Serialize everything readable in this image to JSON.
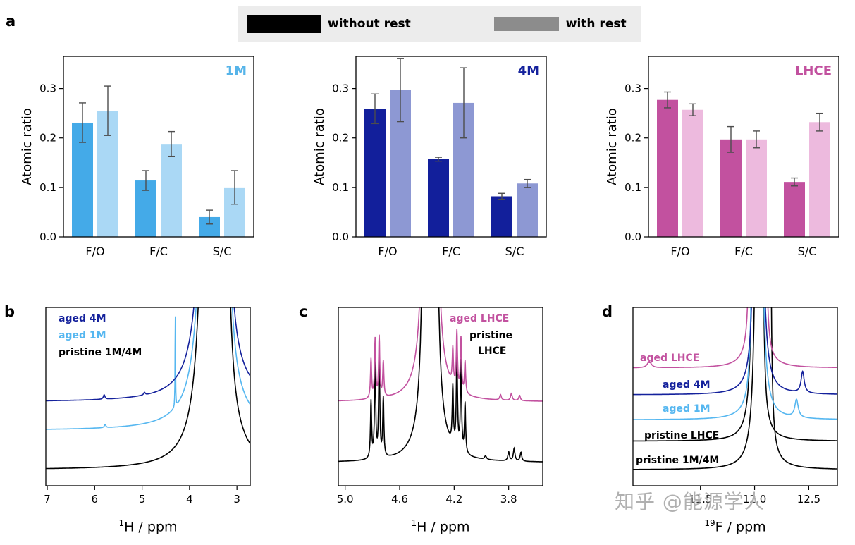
{
  "panels": {
    "a": "a",
    "b": "b",
    "c": "c",
    "d": "d"
  },
  "legend": {
    "items": [
      {
        "label": "without rest",
        "color": "#000000"
      },
      {
        "label": "with rest",
        "color": "#8c8c8c"
      }
    ]
  },
  "watermark": "知乎 @能源学人",
  "chart_data": [
    {
      "type": "bar",
      "panel": "a1",
      "title": "1M",
      "title_color": "#56b4e9",
      "ylabel": "Atomic ratio",
      "ylim": [
        0,
        0.365
      ],
      "yticks": [
        0,
        0.1,
        0.2,
        0.3
      ],
      "categories": [
        "F/O",
        "F/C",
        "S/C"
      ],
      "series": [
        {
          "name": "without rest",
          "color": "#44aae8",
          "values": [
            0.231,
            0.114,
            0.04
          ],
          "errors": [
            0.04,
            0.02,
            0.014
          ]
        },
        {
          "name": "with rest",
          "color": "#aad8f5",
          "values": [
            0.255,
            0.188,
            0.1
          ],
          "errors": [
            0.05,
            0.025,
            0.034
          ]
        }
      ]
    },
    {
      "type": "bar",
      "panel": "a2",
      "title": "4M",
      "title_color": "#14219c",
      "ylabel": "Atomic ratio",
      "ylim": [
        0,
        0.365
      ],
      "yticks": [
        0,
        0.1,
        0.2,
        0.3
      ],
      "categories": [
        "F/O",
        "F/C",
        "S/C"
      ],
      "series": [
        {
          "name": "without rest",
          "color": "#121f9b",
          "values": [
            0.259,
            0.157,
            0.082
          ],
          "errors": [
            0.03,
            0.004,
            0.006
          ]
        },
        {
          "name": "with rest",
          "color": "#8d98d3",
          "values": [
            0.297,
            0.271,
            0.108
          ],
          "errors": [
            0.064,
            0.071,
            0.008
          ]
        }
      ]
    },
    {
      "type": "bar",
      "panel": "a3",
      "title": "LHCE",
      "title_color": "#c2519f",
      "ylabel": "Atomic ratio",
      "ylim": [
        0,
        0.365
      ],
      "yticks": [
        0,
        0.1,
        0.2,
        0.3
      ],
      "categories": [
        "F/O",
        "F/C",
        "S/C"
      ],
      "series": [
        {
          "name": "without rest",
          "color": "#c2519f",
          "values": [
            0.277,
            0.197,
            0.111
          ],
          "errors": [
            0.016,
            0.026,
            0.008
          ]
        },
        {
          "name": "with rest",
          "color": "#edbade",
          "values": [
            0.257,
            0.197,
            0.232
          ],
          "errors": [
            0.012,
            0.017,
            0.018
          ]
        }
      ]
    },
    {
      "type": "line",
      "panel": "b",
      "xlabel_sup": "1",
      "xlabel_main": "H / ppm",
      "x_left": 7.03,
      "x_right": 2.72,
      "xticks": [
        {
          "v": 7,
          "label": "7"
        },
        {
          "v": 6,
          "label": "6"
        },
        {
          "v": 5,
          "label": "5"
        },
        {
          "v": 4,
          "label": "4"
        },
        {
          "v": 3,
          "label": "3"
        }
      ],
      "traces": [
        {
          "name": "pristine 1M/4M",
          "color": "#000000",
          "offset": 0.09,
          "peaks": [
            [
              3.62,
              2.2,
              0.1
            ],
            [
              3.5,
              5,
              0.09
            ],
            [
              3.37,
              5,
              0.06
            ],
            [
              3.23,
              1.4,
              0.045
            ]
          ]
        },
        {
          "name": "aged 1M",
          "color": "#56b7f0",
          "offset": 0.31,
          "peaks": [
            [
              3.62,
              2.2,
              0.1
            ],
            [
              3.5,
              5,
              0.09
            ],
            [
              3.37,
              5,
              0.06
            ],
            [
              3.23,
              1.4,
              0.045
            ],
            [
              4.3,
              0.55,
              0.005
            ],
            [
              5.78,
              0.018,
              0.02
            ]
          ]
        },
        {
          "name": "aged 4M",
          "color": "#14219c",
          "offset": 0.47,
          "peaks": [
            [
              3.62,
              2.2,
              0.1
            ],
            [
              3.5,
              5,
              0.09
            ],
            [
              3.37,
              5,
              0.06
            ],
            [
              3.23,
              1.4,
              0.045
            ],
            [
              5.8,
              0.025,
              0.02
            ],
            [
              4.95,
              0.015,
              0.02
            ]
          ]
        }
      ],
      "labels": [
        {
          "text": "aged 4M",
          "color": "#14219c"
        },
        {
          "text": "aged 1M",
          "color": "#56b7f0"
        },
        {
          "text": "pristine 1M/4M",
          "color": "#000000"
        }
      ]
    },
    {
      "type": "line",
      "panel": "c",
      "xlabel_sup": "1",
      "xlabel_main": "H / ppm",
      "x_left": 5.05,
      "x_right": 3.55,
      "xticks": [
        {
          "v": 5.0,
          "label": "5.0"
        },
        {
          "v": 4.6,
          "label": "4.6"
        },
        {
          "v": 4.2,
          "label": "4.2"
        },
        {
          "v": 3.8,
          "label": "3.8"
        }
      ],
      "traces": [
        {
          "name": "pristine LHCE",
          "color": "#000000",
          "offset": 0.13,
          "peaks": [
            [
              4.81,
              0.32,
              0.005
            ],
            [
              4.78,
              0.55,
              0.005
            ],
            [
              4.75,
              0.58,
              0.005
            ],
            [
              4.72,
              0.33,
              0.005
            ],
            [
              4.42,
              1.5,
              0.01
            ],
            [
              4.38,
              6,
              0.02
            ],
            [
              4.34,
              2.5,
              0.012
            ],
            [
              4.21,
              0.32,
              0.005
            ],
            [
              4.18,
              0.55,
              0.005
            ],
            [
              4.15,
              0.5,
              0.005
            ],
            [
              4.12,
              0.28,
              0.005
            ],
            [
              3.97,
              0.02,
              0.008
            ],
            [
              3.8,
              0.05,
              0.007
            ],
            [
              3.76,
              0.07,
              0.007
            ],
            [
              3.71,
              0.05,
              0.007
            ]
          ]
        },
        {
          "name": "aged LHCE",
          "color": "#c2519f",
          "offset": 0.47,
          "peaks": [
            [
              4.81,
              0.22,
              0.005
            ],
            [
              4.78,
              0.33,
              0.005
            ],
            [
              4.75,
              0.34,
              0.005
            ],
            [
              4.72,
              0.2,
              0.005
            ],
            [
              4.42,
              1.5,
              0.01
            ],
            [
              4.38,
              6,
              0.02
            ],
            [
              4.34,
              2.5,
              0.012
            ],
            [
              4.21,
              0.2,
              0.005
            ],
            [
              4.18,
              0.32,
              0.005
            ],
            [
              4.15,
              0.3,
              0.005
            ],
            [
              4.12,
              0.18,
              0.005
            ],
            [
              3.86,
              0.03,
              0.007
            ],
            [
              3.78,
              0.04,
              0.007
            ],
            [
              3.72,
              0.03,
              0.007
            ]
          ]
        }
      ],
      "labels": [
        {
          "text": "aged LHCE",
          "color": "#c2519f"
        },
        {
          "text": "pristine",
          "color": "#000000"
        },
        {
          "text": "LHCE",
          "color": "#000000"
        }
      ]
    },
    {
      "type": "line",
      "panel": "d",
      "xlabel_sup": "19",
      "xlabel_main": "F / ppm",
      "x_left": 0,
      "x_right": 1,
      "xticks": [
        {
          "v": 0.33,
          "label": "11.5"
        },
        {
          "v": 0.595,
          "label": "12.0"
        },
        {
          "v": 0.86,
          "label": "12.5"
        }
      ],
      "traces": [
        {
          "name": "pristine 1M/4M",
          "color": "#000000",
          "offset": 0.09,
          "peaks": [
            [
              0.615,
              5,
              0.01
            ],
            [
              0.648,
              2.5,
              0.007
            ],
            [
              0.672,
              1.2,
              0.006
            ]
          ]
        },
        {
          "name": "pristine LHCE",
          "color": "#000000",
          "offset": 0.25,
          "peaks": [
            [
              0.6,
              5,
              0.009
            ],
            [
              0.632,
              1.6,
              0.006
            ]
          ]
        },
        {
          "name": "aged 1M",
          "color": "#56b7f0",
          "offset": 0.37,
          "peaks": [
            [
              0.615,
              5,
              0.01
            ],
            [
              0.585,
              1.0,
              0.006
            ],
            [
              0.8,
              0.1,
              0.01
            ]
          ]
        },
        {
          "name": "aged 4M",
          "color": "#14219c",
          "offset": 0.51,
          "peaks": [
            [
              0.617,
              5,
              0.01
            ],
            [
              0.595,
              1.2,
              0.006
            ],
            [
              0.83,
              0.12,
              0.009
            ]
          ]
        },
        {
          "name": "aged LHCE",
          "color": "#c2519f",
          "offset": 0.66,
          "peaks": [
            [
              0.603,
              4,
              0.01
            ],
            [
              0.648,
              0.9,
              0.007
            ],
            [
              0.08,
              0.035,
              0.012
            ],
            [
              0.57,
              0.5,
              0.006
            ]
          ]
        }
      ],
      "labels": [
        {
          "text": "aged LHCE",
          "color": "#c2519f"
        },
        {
          "text": "aged 4M",
          "color": "#14219c"
        },
        {
          "text": "aged 1M",
          "color": "#56b7f0"
        },
        {
          "text": "pristine LHCE",
          "color": "#000000"
        },
        {
          "text": "pristine 1M/4M",
          "color": "#000000"
        }
      ]
    }
  ]
}
